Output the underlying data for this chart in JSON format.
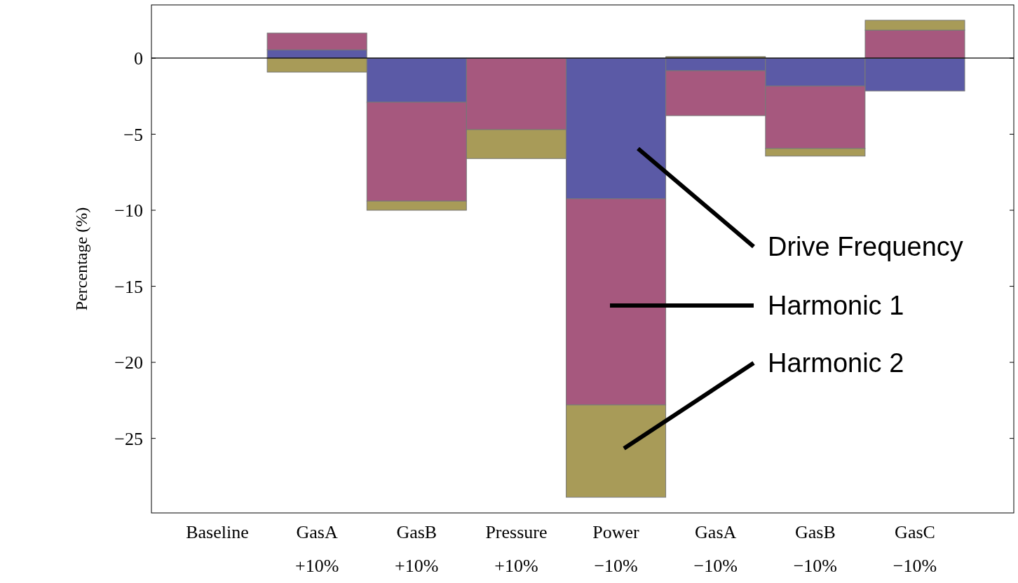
{
  "chart_data": {
    "type": "bar",
    "stacked": true,
    "ylabel": "Percentage (%)",
    "categories": [
      "Baseline",
      "GasA +10%",
      "GasB +10%",
      "Pressure +10%",
      "Power −10%",
      "GasA −10%",
      "GasB −10%",
      "GasC −10%"
    ],
    "series": [
      {
        "name": "Drive Frequency",
        "color": "#5b5aa6",
        "values": [
          0,
          0.55,
          -2.9,
          0,
          -9.25,
          -0.83,
          -1.84,
          -2.16
        ]
      },
      {
        "name": "Harmonic 1",
        "color": "#a6587e",
        "values": [
          0,
          1.1,
          -6.5,
          -4.7,
          -13.55,
          -2.95,
          -4.1,
          1.84
        ]
      },
      {
        "name": "Harmonic 2",
        "color": "#a89b58",
        "values": [
          0,
          -0.92,
          -0.6,
          -1.9,
          -6.07,
          0.1,
          -0.5,
          0.65
        ]
      }
    ],
    "ylim": [
      -29.9,
      3.5
    ],
    "yticks": [
      0,
      {
        "value": -5,
        "label": "−5"
      },
      {
        "value": -10,
        "label": "−10"
      },
      {
        "value": -15,
        "label": "−15"
      },
      {
        "value": -20,
        "label": "−20"
      },
      {
        "value": -25,
        "label": "−25"
      }
    ],
    "ref_lines": [
      {
        "axis": "y",
        "value": 0,
        "color": "#000000"
      }
    ],
    "grid": false
  }
}
